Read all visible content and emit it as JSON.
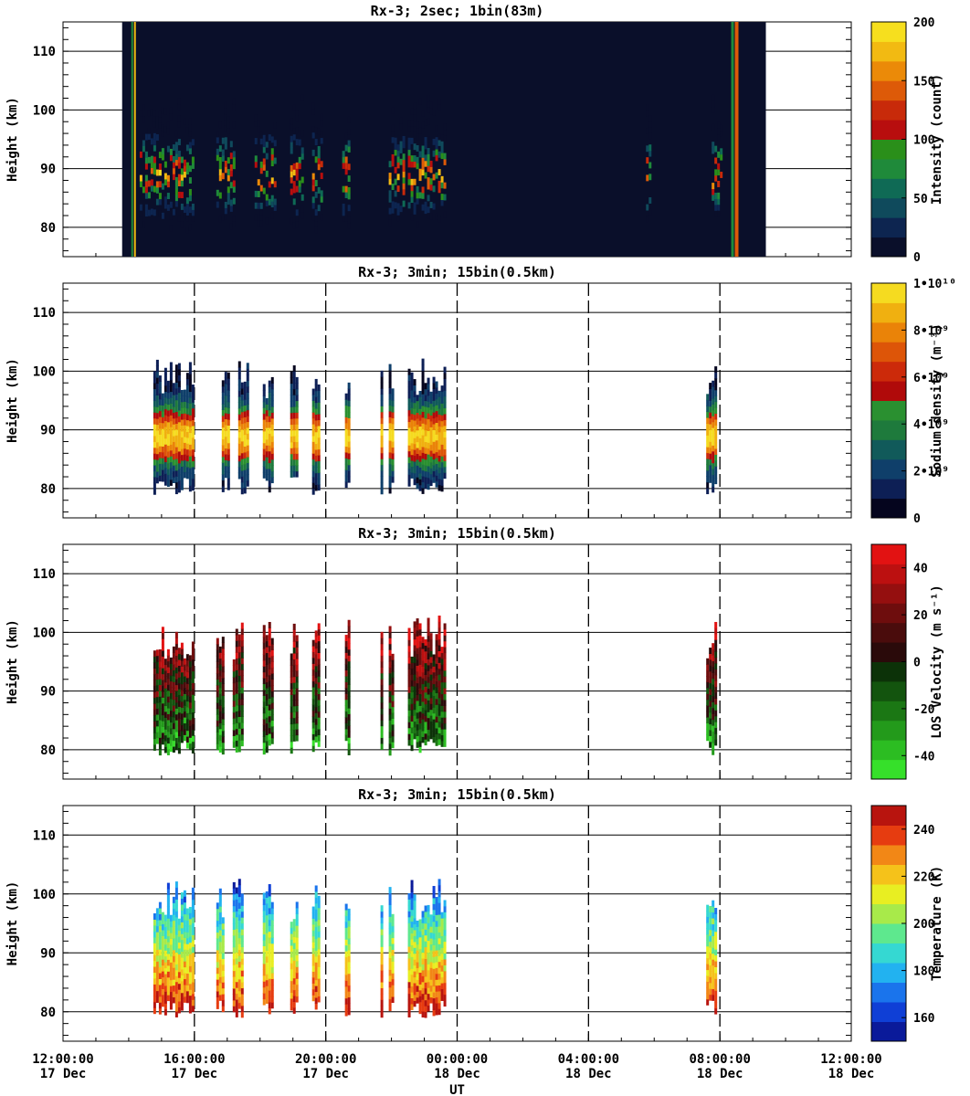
{
  "chart_data": [
    {
      "type": "heatmap",
      "title": "Rx-3;  2sec; 1bin(83m)",
      "ylabel": "Height (km)",
      "ylim": [
        75,
        115
      ],
      "yticks": [
        80,
        90,
        100,
        110
      ],
      "colorbar": {
        "label": "Intensity (count)",
        "range": [
          0,
          200
        ],
        "ticks": [
          "0",
          "50",
          "100",
          "150",
          "200"
        ],
        "tick_values": [
          0,
          50,
          100,
          150,
          200
        ],
        "colors": [
          "#0a0f2a",
          "#0d2550",
          "#0f4a5c",
          "#0f6a55",
          "#1f8a3a",
          "#2a8f1a",
          "#b80e0e",
          "#c82a0a",
          "#dd5a08",
          "#eb8a08",
          "#f2ba12",
          "#f6df1e"
        ]
      },
      "data_window_utc": [
        "2019-12-17T13:48",
        "2019-12-18T09:24"
      ],
      "layer_height_km": [
        83,
        97
      ],
      "layer_peak_km": 87,
      "observation_segments_utc": [
        [
          "14:20",
          "16:00"
        ],
        [
          "16:40",
          "17:15"
        ],
        [
          "17:50",
          "18:30"
        ],
        [
          "18:55",
          "19:20"
        ],
        [
          "19:35",
          "19:55"
        ],
        [
          "20:30",
          "20:45"
        ],
        [
          "21:55",
          "22:25"
        ],
        [
          "22:30",
          "23:40"
        ],
        [
          "05:45",
          "05:55"
        ],
        [
          "07:45",
          "08:05"
        ]
      ]
    },
    {
      "type": "heatmap",
      "title": "Rx-3; 3min; 15bin(0.5km)",
      "ylabel": "Height (km)",
      "ylim": [
        75,
        115
      ],
      "yticks": [
        80,
        90,
        100,
        110
      ],
      "colorbar": {
        "label": "Sodium density (m⁻³)",
        "range": [
          0,
          10000000000
        ],
        "ticks": [
          "0",
          "2•10⁹",
          "4•10⁹",
          "6•10⁹",
          "8•10⁹",
          "1•10¹⁰"
        ],
        "tick_values": [
          0,
          2000000000,
          4000000000,
          6000000000,
          8000000000,
          10000000000
        ],
        "colors": [
          "#05051e",
          "#0d1f55",
          "#0f3f6a",
          "#115a5a",
          "#1e7a3c",
          "#2a9030",
          "#b00a0a",
          "#cc2a0a",
          "#dd5508",
          "#ea8308",
          "#f0b010",
          "#f5db20"
        ]
      },
      "observation_segments_utc": [
        [
          "14:45",
          "16:00"
        ],
        [
          "16:50",
          "17:05"
        ],
        [
          "17:20",
          "17:40"
        ],
        [
          "18:05",
          "18:25"
        ],
        [
          "18:55",
          "19:10"
        ],
        [
          "19:35",
          "19:50"
        ],
        [
          "20:35",
          "20:45"
        ],
        [
          "21:40",
          "21:45"
        ],
        [
          "21:55",
          "22:05"
        ],
        [
          "22:30",
          "23:40"
        ],
        [
          "07:35",
          "07:55"
        ]
      ]
    },
    {
      "type": "heatmap",
      "title": "Rx-3; 3min; 15bin(0.5km)",
      "ylabel": "Height (km)",
      "ylim": [
        75,
        115
      ],
      "yticks": [
        80,
        90,
        100,
        110
      ],
      "colorbar": {
        "label": "LOS Velocity (m s⁻¹)",
        "range": [
          -50,
          50
        ],
        "ticks": [
          "-40",
          "-20",
          "0",
          "20",
          "40"
        ],
        "tick_values": [
          -40,
          -20,
          0,
          20,
          40
        ],
        "colors": [
          "#36e02a",
          "#2cbd22",
          "#239a1b",
          "#1b7714",
          "#13540e",
          "#0c3208",
          "#2a0a0a",
          "#4a0c0c",
          "#6e0d0d",
          "#950f0f",
          "#bc1010",
          "#e21212"
        ]
      },
      "observation_segments_utc": [
        [
          "14:45",
          "16:00"
        ],
        [
          "16:40",
          "16:55"
        ],
        [
          "17:10",
          "17:30"
        ],
        [
          "18:05",
          "18:25"
        ],
        [
          "18:55",
          "19:10"
        ],
        [
          "19:35",
          "19:50"
        ],
        [
          "20:35",
          "20:45"
        ],
        [
          "21:40",
          "21:45"
        ],
        [
          "21:55",
          "22:05"
        ],
        [
          "22:30",
          "23:40"
        ],
        [
          "07:35",
          "07:55"
        ]
      ]
    },
    {
      "type": "heatmap",
      "title": "Rx-3; 3min; 15bin(0.5km)",
      "ylabel": "Height (km)",
      "xlabel": "UT",
      "ylim": [
        75,
        115
      ],
      "yticks": [
        80,
        90,
        100,
        110
      ],
      "xticks": [
        "12:00:00\n17 Dec",
        "16:00:00\n17 Dec",
        "20:00:00\n17 Dec",
        "00:00:00\n18 Dec",
        "04:00:00\n18 Dec",
        "08:00:00\n18 Dec",
        "12:00:00\n18 Dec"
      ],
      "colorbar": {
        "label": "Temperature (K)",
        "range": [
          150,
          250
        ],
        "ticks": [
          "160",
          "180",
          "200",
          "220",
          "240"
        ],
        "tick_values": [
          160,
          180,
          200,
          220,
          240
        ],
        "colors": [
          "#0a1a9a",
          "#0f3fd6",
          "#1a74ec",
          "#22b2f0",
          "#35d8d2",
          "#5ee88e",
          "#a8ea4a",
          "#e8ee22",
          "#f5c21a",
          "#f28716",
          "#e63c10",
          "#b8140e"
        ]
      },
      "observation_segments_utc": [
        [
          "14:45",
          "16:00"
        ],
        [
          "16:40",
          "16:55"
        ],
        [
          "17:10",
          "17:30"
        ],
        [
          "18:05",
          "18:25"
        ],
        [
          "18:55",
          "19:10"
        ],
        [
          "19:35",
          "19:50"
        ],
        [
          "20:35",
          "20:45"
        ],
        [
          "21:40",
          "21:45"
        ],
        [
          "21:55",
          "22:05"
        ],
        [
          "22:30",
          "23:40"
        ],
        [
          "07:35",
          "07:55"
        ]
      ]
    }
  ]
}
